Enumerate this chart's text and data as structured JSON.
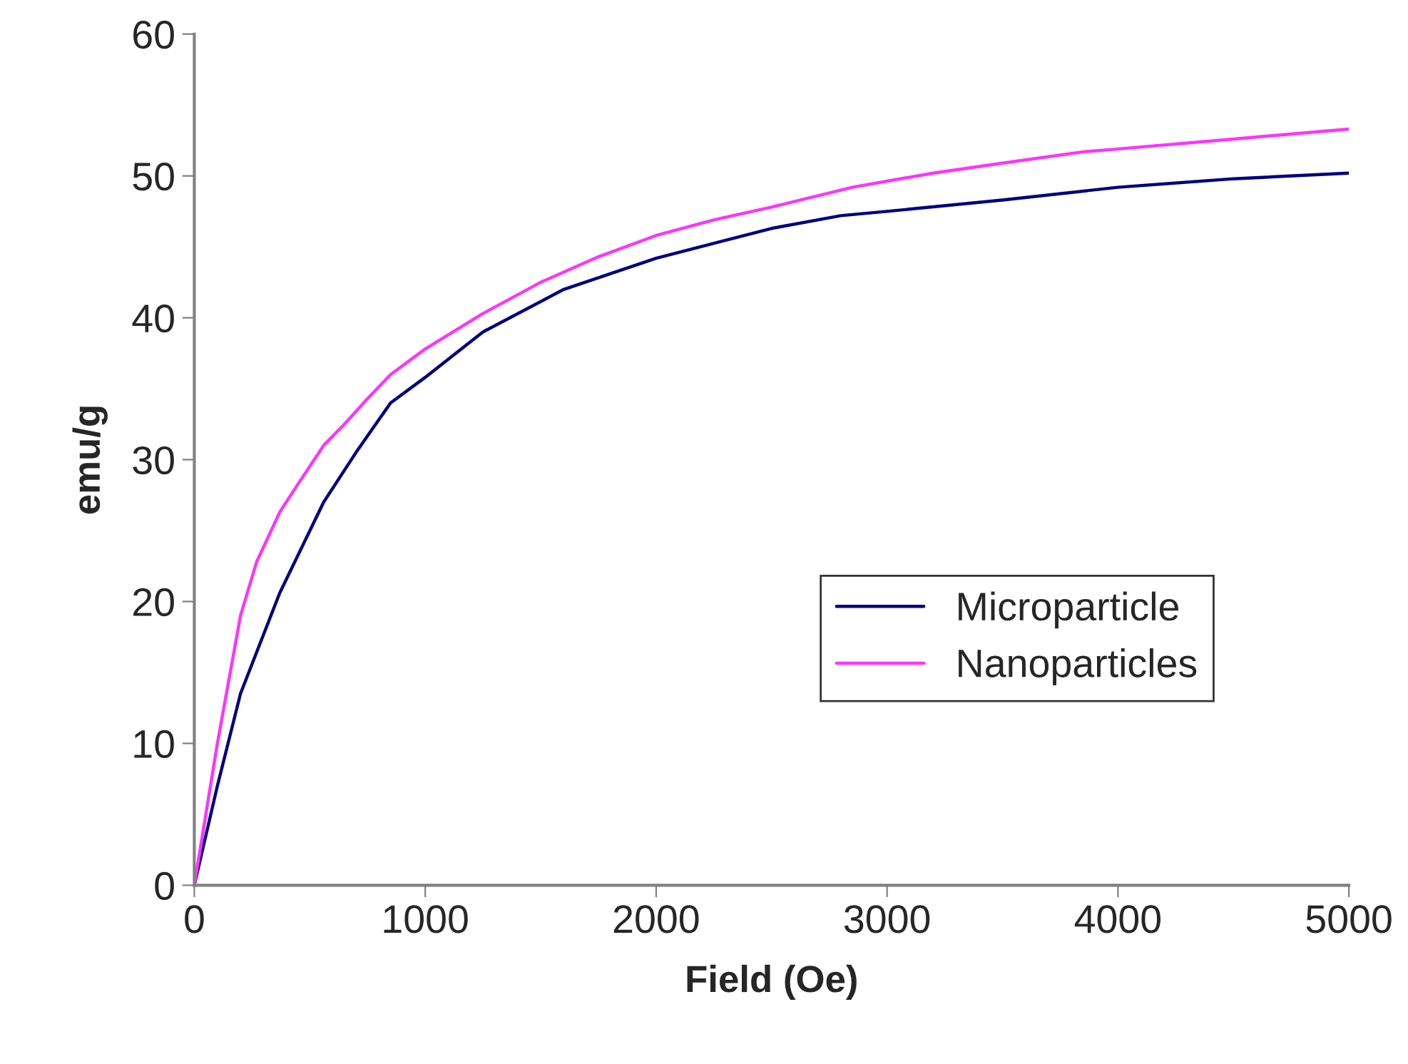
{
  "chart_data": {
    "type": "line",
    "xlabel": "Field (Oe)",
    "ylabel": "emu/g",
    "xlim": [
      0,
      5000
    ],
    "xticks": [
      0,
      1000,
      2000,
      3000,
      4000,
      5000
    ],
    "ylim": [
      0,
      60
    ],
    "yticks": [
      0,
      10,
      20,
      30,
      40,
      50,
      60
    ],
    "grid": false,
    "legend": "right",
    "marker": "none",
    "line_style": "solid",
    "series": [
      {
        "name": "Microparticle",
        "color": "#000080",
        "x": [
          0,
          100,
          200,
          370,
          560,
          700,
          850,
          1000,
          1250,
          1600,
          2000,
          2500,
          2800,
          3000,
          3500,
          4000,
          4500,
          5000
        ],
        "values": [
          0,
          7,
          13.5,
          20.6,
          27,
          30.5,
          34,
          35.8,
          39,
          42,
          44.2,
          46.3,
          47.2,
          47.5,
          48.3,
          49.2,
          49.8,
          50.2
        ]
      },
      {
        "name": "Nanoparticles",
        "color": "#ff33ff",
        "x": [
          0,
          100,
          200,
          270,
          370,
          450,
          560,
          650,
          750,
          850,
          1000,
          1250,
          1500,
          1750,
          2000,
          2250,
          2500,
          2850,
          3200,
          3500,
          3850,
          4000,
          4500,
          5000
        ],
        "values": [
          0,
          10,
          19,
          22.8,
          26.3,
          28.3,
          31,
          32.5,
          34.3,
          36,
          37.8,
          40.3,
          42.5,
          44.3,
          45.8,
          46.9,
          47.8,
          49.2,
          50.2,
          50.9,
          51.7,
          51.9,
          52.6,
          53.3
        ]
      }
    ]
  }
}
